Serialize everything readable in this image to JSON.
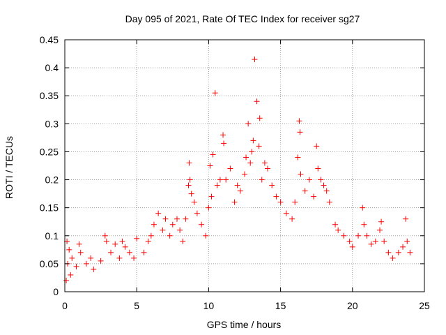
{
  "chart_data": {
    "type": "scatter",
    "title": "Day 095 of 2021, Rate Of TEC Index for receiver sg27",
    "xlabel": "GPS time / hours",
    "ylabel": "ROTI / TECUs",
    "xlim": [
      0,
      25
    ],
    "ylim": [
      0,
      0.45
    ],
    "xticks": [
      0,
      5,
      10,
      15,
      20,
      25
    ],
    "xtick_labels": [
      "0",
      "5",
      "10",
      "15",
      "20",
      "25"
    ],
    "yticks": [
      0,
      0.05,
      0.1,
      0.15,
      0.2,
      0.25,
      0.3,
      0.35,
      0.4,
      0.45
    ],
    "ytick_labels": [
      "0",
      "0.05",
      "0.1",
      "0.15",
      "0.2",
      "0.25",
      "0.3",
      "0.35",
      "0.4",
      "0.45"
    ],
    "grid": true,
    "marker": "+",
    "color": "#ff0000",
    "series": [
      {
        "name": "ROTI",
        "points": [
          [
            0.1,
            0.02
          ],
          [
            0.15,
            0.09
          ],
          [
            0.2,
            0.05
          ],
          [
            0.3,
            0.075
          ],
          [
            0.4,
            0.03
          ],
          [
            0.5,
            0.06
          ],
          [
            0.8,
            0.045
          ],
          [
            1.0,
            0.085
          ],
          [
            1.1,
            0.07
          ],
          [
            1.5,
            0.05
          ],
          [
            1.8,
            0.06
          ],
          [
            2.0,
            0.04
          ],
          [
            2.5,
            0.055
          ],
          [
            2.8,
            0.1
          ],
          [
            2.9,
            0.09
          ],
          [
            3.2,
            0.07
          ],
          [
            3.5,
            0.085
          ],
          [
            3.8,
            0.06
          ],
          [
            4.0,
            0.09
          ],
          [
            4.2,
            0.08
          ],
          [
            4.5,
            0.07
          ],
          [
            4.8,
            0.06
          ],
          [
            5.0,
            0.095
          ],
          [
            5.5,
            0.07
          ],
          [
            5.8,
            0.09
          ],
          [
            6.0,
            0.1
          ],
          [
            6.2,
            0.12
          ],
          [
            6.5,
            0.14
          ],
          [
            6.8,
            0.11
          ],
          [
            7.0,
            0.13
          ],
          [
            7.3,
            0.1
          ],
          [
            7.5,
            0.12
          ],
          [
            7.8,
            0.13
          ],
          [
            8.0,
            0.11
          ],
          [
            8.2,
            0.09
          ],
          [
            8.4,
            0.13
          ],
          [
            8.6,
            0.19
          ],
          [
            8.65,
            0.23
          ],
          [
            8.7,
            0.2
          ],
          [
            8.8,
            0.175
          ],
          [
            9.0,
            0.16
          ],
          [
            9.2,
            0.14
          ],
          [
            9.5,
            0.12
          ],
          [
            9.8,
            0.1
          ],
          [
            10.0,
            0.15
          ],
          [
            10.1,
            0.225
          ],
          [
            10.2,
            0.17
          ],
          [
            10.3,
            0.245
          ],
          [
            10.45,
            0.355
          ],
          [
            10.6,
            0.19
          ],
          [
            10.8,
            0.2
          ],
          [
            11.0,
            0.28
          ],
          [
            11.05,
            0.265
          ],
          [
            11.2,
            0.2
          ],
          [
            11.5,
            0.22
          ],
          [
            11.8,
            0.16
          ],
          [
            12.0,
            0.19
          ],
          [
            12.2,
            0.18
          ],
          [
            12.5,
            0.21
          ],
          [
            12.6,
            0.24
          ],
          [
            12.75,
            0.3
          ],
          [
            12.9,
            0.23
          ],
          [
            13.0,
            0.25
          ],
          [
            13.1,
            0.27
          ],
          [
            13.2,
            0.415
          ],
          [
            13.35,
            0.34
          ],
          [
            13.5,
            0.26
          ],
          [
            13.55,
            0.31
          ],
          [
            13.7,
            0.2
          ],
          [
            13.9,
            0.23
          ],
          [
            14.1,
            0.22
          ],
          [
            14.4,
            0.19
          ],
          [
            14.7,
            0.17
          ],
          [
            15.0,
            0.16
          ],
          [
            15.4,
            0.14
          ],
          [
            15.8,
            0.13
          ],
          [
            16.0,
            0.16
          ],
          [
            16.2,
            0.24
          ],
          [
            16.3,
            0.305
          ],
          [
            16.35,
            0.285
          ],
          [
            16.4,
            0.21
          ],
          [
            16.7,
            0.18
          ],
          [
            17.0,
            0.2
          ],
          [
            17.3,
            0.17
          ],
          [
            17.5,
            0.26
          ],
          [
            17.6,
            0.22
          ],
          [
            17.8,
            0.2
          ],
          [
            18.0,
            0.19
          ],
          [
            18.2,
            0.18
          ],
          [
            18.4,
            0.16
          ],
          [
            18.8,
            0.12
          ],
          [
            19.0,
            0.11
          ],
          [
            19.4,
            0.1
          ],
          [
            19.8,
            0.09
          ],
          [
            20.0,
            0.08
          ],
          [
            20.4,
            0.1
          ],
          [
            20.7,
            0.15
          ],
          [
            20.8,
            0.12
          ],
          [
            21.0,
            0.1
          ],
          [
            21.3,
            0.085
          ],
          [
            21.6,
            0.09
          ],
          [
            21.9,
            0.11
          ],
          [
            22.0,
            0.125
          ],
          [
            22.2,
            0.09
          ],
          [
            22.5,
            0.07
          ],
          [
            22.8,
            0.06
          ],
          [
            23.2,
            0.07
          ],
          [
            23.5,
            0.08
          ],
          [
            23.7,
            0.13
          ],
          [
            23.8,
            0.09
          ],
          [
            24.0,
            0.07
          ]
        ]
      }
    ]
  }
}
